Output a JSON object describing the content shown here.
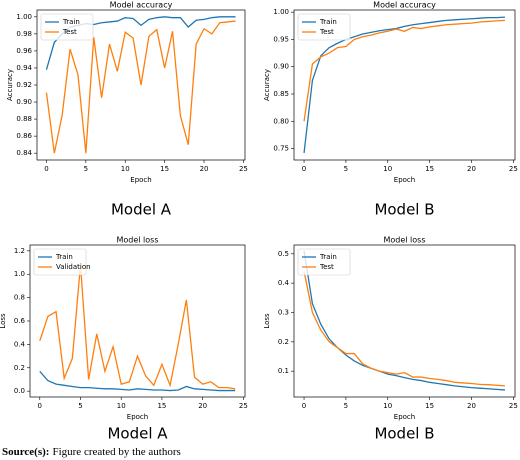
{
  "chart_data": [
    {
      "type": "line",
      "title": "Model accuracy",
      "xlabel": "Epoch",
      "ylabel": "Accuracy",
      "caption": "Model  A",
      "legend": "upper left",
      "x": [
        0,
        1,
        2,
        3,
        4,
        5,
        6,
        7,
        8,
        9,
        10,
        11,
        12,
        13,
        14,
        15,
        16,
        17,
        18,
        19,
        20,
        21,
        22,
        23,
        24
      ],
      "series": [
        {
          "name": "Train",
          "color": "#1f77b4",
          "values": [
            0.938,
            0.97,
            0.98,
            0.988,
            0.99,
            0.992,
            0.991,
            0.993,
            0.994,
            0.995,
            0.999,
            0.998,
            0.99,
            0.997,
            0.999,
            1.0,
            0.999,
            0.999,
            0.988,
            0.996,
            0.997,
            0.999,
            1.0,
            1.0,
            1.0
          ]
        },
        {
          "name": "Test",
          "color": "#ff7f0e",
          "values": [
            0.911,
            0.84,
            0.885,
            0.962,
            0.932,
            0.84,
            0.976,
            0.905,
            0.968,
            0.936,
            0.982,
            0.975,
            0.92,
            0.977,
            0.985,
            0.94,
            0.983,
            0.884,
            0.85,
            0.968,
            0.986,
            0.98,
            0.993,
            0.994,
            0.995
          ]
        }
      ],
      "xlim": [
        -1.2,
        25.2
      ],
      "xticks": [
        0,
        5,
        10,
        15,
        20,
        25
      ],
      "ylim": [
        0.832,
        1.008
      ],
      "yticks": [
        0.84,
        0.86,
        0.88,
        {
          "value": 0.9,
          "label": "0.90"
        },
        0.92,
        0.94,
        0.96,
        0.98,
        {
          "value": 1,
          "label": "1.00"
        }
      ]
    },
    {
      "type": "line",
      "title": "Model accuracy",
      "xlabel": "Epoch",
      "ylabel": "Accuracy",
      "caption": "Model  B",
      "legend": "upper left",
      "x": [
        0,
        1,
        2,
        3,
        4,
        5,
        6,
        7,
        8,
        9,
        10,
        11,
        12,
        13,
        14,
        15,
        16,
        17,
        18,
        19,
        20,
        21,
        22,
        23,
        24
      ],
      "series": [
        {
          "name": "Train",
          "color": "#1f77b4",
          "values": [
            0.742,
            0.875,
            0.92,
            0.935,
            0.943,
            0.95,
            0.955,
            0.96,
            0.963,
            0.966,
            0.968,
            0.97,
            0.974,
            0.977,
            0.979,
            0.981,
            0.983,
            0.985,
            0.986,
            0.987,
            0.988,
            0.989,
            0.99,
            0.99,
            0.991
          ]
        },
        {
          "name": "Test",
          "color": "#ff7f0e",
          "values": [
            0.8,
            0.905,
            0.918,
            0.925,
            0.935,
            0.937,
            0.95,
            0.955,
            0.958,
            0.962,
            0.965,
            0.969,
            0.965,
            0.972,
            0.97,
            0.973,
            0.975,
            0.977,
            0.978,
            0.979,
            0.98,
            0.982,
            0.983,
            0.984,
            0.985
          ]
        }
      ],
      "xlim": [
        -1.2,
        25.2
      ],
      "xticks": [
        0,
        5,
        10,
        15,
        20,
        25
      ],
      "ylim": [
        0.729,
        1.004
      ],
      "yticks": [
        0.75,
        {
          "value": 0.8,
          "label": "0.80"
        },
        0.85,
        {
          "value": 0.9,
          "label": "0.90"
        },
        0.95,
        {
          "value": 1,
          "label": "1.00"
        }
      ]
    },
    {
      "type": "line",
      "title": "Model loss",
      "xlabel": "Epoch",
      "ylabel": "Loss",
      "caption": "Model  A",
      "legend": "upper left",
      "x": [
        0,
        1,
        2,
        3,
        4,
        5,
        6,
        7,
        8,
        9,
        10,
        11,
        12,
        13,
        14,
        15,
        16,
        17,
        18,
        19,
        20,
        21,
        22,
        23,
        24
      ],
      "series": [
        {
          "name": "Train",
          "color": "#1f77b4",
          "values": [
            0.17,
            0.09,
            0.06,
            0.05,
            0.04,
            0.03,
            0.03,
            0.025,
            0.02,
            0.02,
            0.015,
            0.01,
            0.02,
            0.015,
            0.01,
            0.01,
            0.005,
            0.01,
            0.04,
            0.02,
            0.015,
            0.01,
            0.005,
            0.005,
            0.005
          ]
        },
        {
          "name": "Validation",
          "color": "#ff7f0e",
          "values": [
            0.43,
            0.64,
            0.68,
            0.11,
            0.28,
            1.08,
            0.1,
            0.49,
            0.17,
            0.38,
            0.06,
            0.08,
            0.3,
            0.13,
            0.05,
            0.23,
            0.05,
            0.4,
            0.78,
            0.12,
            0.06,
            0.08,
            0.03,
            0.03,
            0.02
          ]
        }
      ],
      "xlim": [
        -1.2,
        25.2
      ],
      "xticks": [
        0,
        5,
        10,
        15,
        20,
        25
      ],
      "ylim": [
        -0.05,
        1.25
      ],
      "yticks": [
        {
          "value": 0,
          "label": "0.0"
        },
        0.2,
        0.4,
        0.6,
        0.8,
        {
          "value": 1,
          "label": "1.0"
        },
        1.2
      ]
    },
    {
      "type": "line",
      "title": "Model loss",
      "xlabel": "Epoch",
      "ylabel": "Loss",
      "caption": "Model  B",
      "legend": "upper left",
      "x": [
        0,
        1,
        2,
        3,
        4,
        5,
        6,
        7,
        8,
        9,
        10,
        11,
        12,
        13,
        14,
        15,
        16,
        17,
        18,
        19,
        20,
        21,
        22,
        23,
        24
      ],
      "series": [
        {
          "name": "Train",
          "color": "#1f77b4",
          "values": [
            0.51,
            0.33,
            0.26,
            0.21,
            0.18,
            0.155,
            0.135,
            0.12,
            0.11,
            0.1,
            0.09,
            0.085,
            0.078,
            0.072,
            0.068,
            0.062,
            0.058,
            0.054,
            0.05,
            0.047,
            0.044,
            0.042,
            0.04,
            0.038,
            0.036
          ]
        },
        {
          "name": "Test",
          "color": "#ff7f0e",
          "values": [
            0.44,
            0.3,
            0.24,
            0.2,
            0.18,
            0.16,
            0.16,
            0.125,
            0.11,
            0.1,
            0.095,
            0.09,
            0.095,
            0.08,
            0.08,
            0.075,
            0.072,
            0.068,
            0.062,
            0.06,
            0.058,
            0.055,
            0.054,
            0.052,
            0.05
          ]
        }
      ],
      "xlim": [
        -1.2,
        25.2
      ],
      "xticks": [
        0,
        5,
        10,
        15,
        20,
        25
      ],
      "ylim": [
        0.012,
        0.53
      ],
      "yticks": [
        0.1,
        0.2,
        0.3,
        0.4,
        0.5
      ]
    }
  ],
  "source": {
    "label": "Source(s):",
    "text": "Figure created by the authors"
  }
}
